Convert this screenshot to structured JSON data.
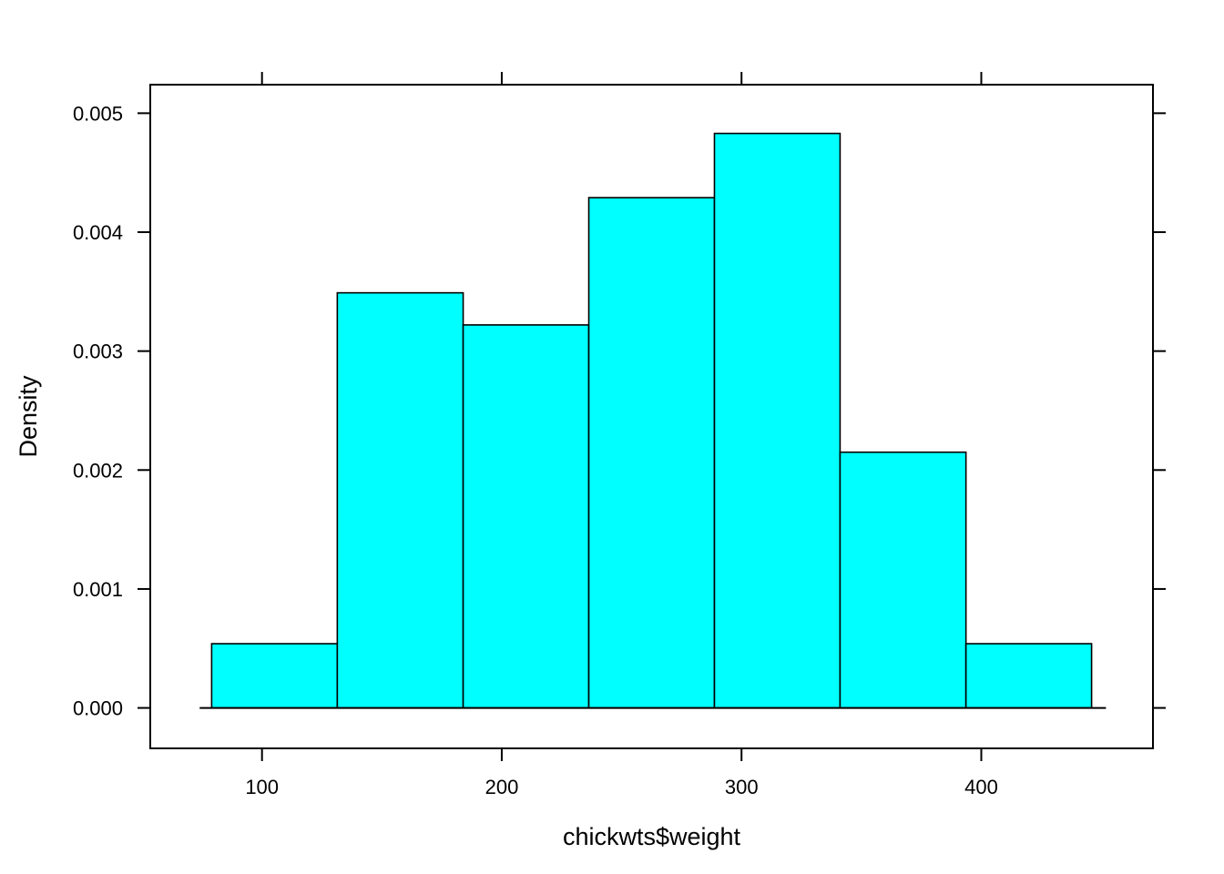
{
  "chart_data": {
    "type": "histogram",
    "xlabel": "chickwts$weight",
    "ylabel": "Density",
    "xlim": [
      53.4,
      471.6
    ],
    "ylim": [
      -0.00034,
      0.00524
    ],
    "x_ticks": [
      100,
      200,
      300,
      400
    ],
    "x_tick_labels": [
      "100",
      "200",
      "300",
      "400"
    ],
    "y_ticks": [
      0.0,
      0.001,
      0.002,
      0.003,
      0.004,
      0.005
    ],
    "y_tick_labels": [
      "0.000",
      "0.001",
      "0.002",
      "0.003",
      "0.004",
      "0.005"
    ],
    "bins": [
      {
        "x0": 79.0,
        "x1": 131.4,
        "density": 0.00054
      },
      {
        "x0": 131.4,
        "x1": 183.9,
        "density": 0.00349
      },
      {
        "x0": 183.9,
        "x1": 236.3,
        "density": 0.00322
      },
      {
        "x0": 236.3,
        "x1": 288.7,
        "density": 0.00429
      },
      {
        "x0": 288.7,
        "x1": 341.1,
        "density": 0.00483
      },
      {
        "x0": 341.1,
        "x1": 393.6,
        "density": 0.00215
      },
      {
        "x0": 393.6,
        "x1": 446.0,
        "density": 0.00054
      }
    ],
    "baseline": {
      "x0": 74,
      "x1": 452,
      "y": 0
    },
    "grid": false,
    "colors": {
      "fill": "#00FFFF",
      "stroke": "#000000"
    }
  }
}
